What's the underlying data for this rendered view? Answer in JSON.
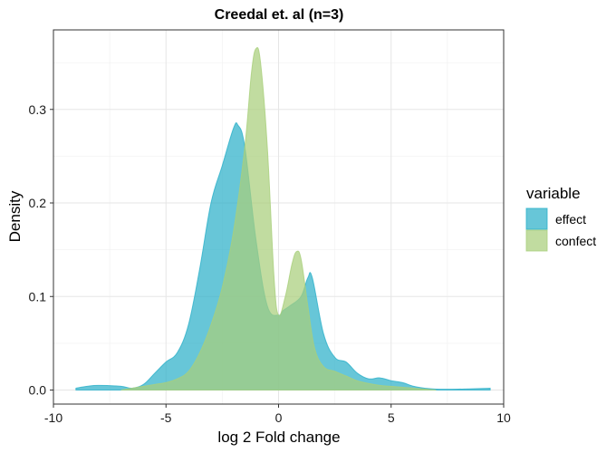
{
  "chart_data": {
    "type": "area",
    "title": "Creedal et. al (n=3)",
    "xlabel": "log 2 Fold change",
    "ylabel": "Density",
    "xlim": [
      -10,
      10
    ],
    "ylim": [
      -0.015,
      0.385
    ],
    "x_ticks": [
      -10,
      -5,
      0,
      5,
      10
    ],
    "x_tick_labels": [
      "-10",
      "-5",
      "0",
      "5",
      "10"
    ],
    "y_ticks": [
      0.0,
      0.1,
      0.2,
      0.3
    ],
    "y_tick_labels": [
      "0.0",
      "0.1",
      "0.2",
      "0.3"
    ],
    "grid": true,
    "legend": {
      "title": "variable",
      "position": "right"
    },
    "series": [
      {
        "name": "effect",
        "color": "#2cb0c9",
        "x": [
          -9.0,
          -8.5,
          -8.0,
          -7.0,
          -6.5,
          -6.0,
          -5.5,
          -5.0,
          -4.5,
          -4.0,
          -3.5,
          -3.0,
          -2.5,
          -2.0,
          -1.8,
          -1.5,
          -1.0,
          -0.5,
          0.0,
          0.2,
          0.5,
          1.0,
          1.3,
          1.5,
          2.0,
          2.5,
          3.0,
          3.5,
          4.0,
          4.5,
          5.0,
          5.5,
          6.0,
          6.5,
          7.0,
          8.0,
          9.4
        ],
        "y": [
          0.002,
          0.004,
          0.005,
          0.004,
          0.002,
          0.006,
          0.018,
          0.03,
          0.04,
          0.07,
          0.13,
          0.2,
          0.24,
          0.28,
          0.283,
          0.26,
          0.16,
          0.09,
          0.08,
          0.085,
          0.09,
          0.1,
          0.12,
          0.12,
          0.06,
          0.035,
          0.03,
          0.018,
          0.012,
          0.013,
          0.01,
          0.008,
          0.004,
          0.002,
          0.001,
          0.001,
          0.002
        ]
      },
      {
        "name": "confect",
        "color": "#a9cf7c",
        "x": [
          -7.0,
          -6.5,
          -6.0,
          -5.5,
          -5.0,
          -4.5,
          -4.0,
          -3.5,
          -3.0,
          -2.5,
          -2.0,
          -1.5,
          -1.2,
          -1.0,
          -0.8,
          -0.5,
          -0.2,
          0.0,
          0.3,
          0.6,
          0.8,
          1.0,
          1.3,
          1.6,
          2.0,
          2.5,
          3.0,
          3.5,
          4.0,
          4.5,
          5.0,
          6.0,
          7.0
        ],
        "y": [
          0.0,
          0.002,
          0.004,
          0.006,
          0.008,
          0.012,
          0.02,
          0.04,
          0.07,
          0.11,
          0.17,
          0.26,
          0.34,
          0.365,
          0.35,
          0.26,
          0.12,
          0.08,
          0.1,
          0.135,
          0.148,
          0.14,
          0.09,
          0.045,
          0.025,
          0.02,
          0.015,
          0.01,
          0.007,
          0.005,
          0.004,
          0.002,
          0.0
        ]
      }
    ]
  }
}
